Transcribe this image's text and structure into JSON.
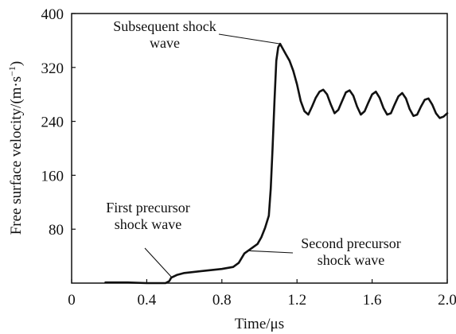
{
  "chart_data": {
    "type": "line",
    "title": "",
    "xlabel": "Time/μs",
    "ylabel": "Free surface velocity/(m·s",
    "ylabel_exponent": "−1",
    "ylabel_close": ")",
    "xlim": [
      0,
      2.0
    ],
    "ylim": [
      0,
      400
    ],
    "x_ticks": [
      0,
      0.4,
      0.8,
      1.2,
      1.6,
      2.0
    ],
    "x_tick_labels": [
      "0",
      "0.4",
      "0.8",
      "1.2",
      "1.6",
      "2.0"
    ],
    "y_ticks": [
      80,
      160,
      240,
      320,
      400
    ],
    "y_tick_labels": [
      "80",
      "160",
      "240",
      "320",
      "400"
    ],
    "grid": false,
    "series": [
      {
        "x": [
          0.18,
          0.22,
          0.3,
          0.4,
          0.5,
          0.52,
          0.53,
          0.56,
          0.6,
          0.7,
          0.8,
          0.86,
          0.89,
          0.92,
          0.95,
          0.97,
          0.99,
          1.01,
          1.03,
          1.05,
          1.06,
          1.07,
          1.08,
          1.09,
          1.1,
          1.11,
          1.12,
          1.14,
          1.16,
          1.18,
          1.2,
          1.22,
          1.24,
          1.26,
          1.28,
          1.3,
          1.32,
          1.34,
          1.36,
          1.38,
          1.4,
          1.42,
          1.44,
          1.46,
          1.48,
          1.5,
          1.52,
          1.54,
          1.56,
          1.58,
          1.6,
          1.62,
          1.64,
          1.66,
          1.68,
          1.7,
          1.72,
          1.74,
          1.76,
          1.78,
          1.8,
          1.82,
          1.84,
          1.86,
          1.88,
          1.9,
          1.92,
          1.94,
          1.96,
          1.98,
          2.0
        ],
        "y": [
          1,
          1,
          1,
          0,
          0,
          3,
          8,
          12,
          15,
          18,
          21,
          24,
          30,
          44,
          50,
          54,
          58,
          68,
          82,
          100,
          140,
          200,
          270,
          330,
          350,
          355,
          350,
          340,
          330,
          315,
          295,
          270,
          255,
          250,
          262,
          275,
          284,
          287,
          280,
          265,
          252,
          257,
          270,
          283,
          286,
          278,
          262,
          250,
          255,
          268,
          280,
          284,
          275,
          260,
          250,
          252,
          265,
          277,
          282,
          274,
          258,
          248,
          250,
          262,
          272,
          274,
          265,
          252,
          245,
          247,
          252
        ]
      }
    ],
    "annotations": [
      {
        "lines": [
          "Subsequent shock",
          "wave"
        ],
        "x": 1.11,
        "y": 355
      },
      {
        "lines": [
          "First precursor",
          "shock wave"
        ],
        "x": 0.535,
        "y": 8
      },
      {
        "lines": [
          "Second precursor",
          "shock wave"
        ],
        "x": 0.94,
        "y": 48
      }
    ]
  }
}
